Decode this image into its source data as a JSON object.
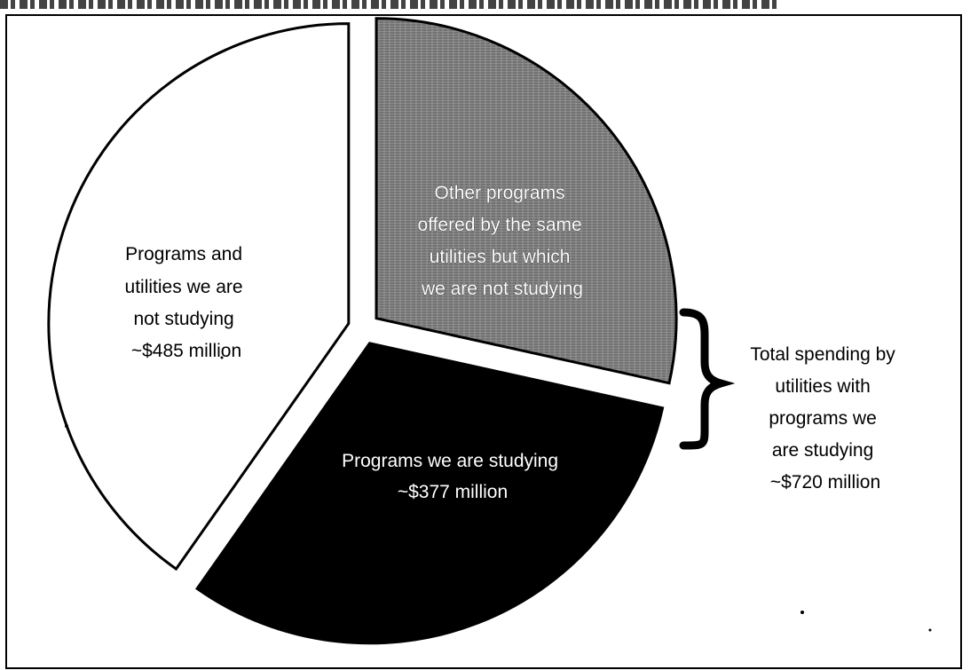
{
  "chart_data": {
    "type": "pie",
    "slices": [
      {
        "label_lines": [
          "Other programs",
          "offered by the same",
          "utilities but which",
          "we are not studying"
        ],
        "value": 343,
        "color": "#7a7a7a",
        "fill_style": "hatched"
      },
      {
        "label_lines": [
          "Programs we are studying",
          "~$377 million"
        ],
        "value": 377,
        "color": "#000000",
        "fill_style": "solid"
      },
      {
        "label_lines": [
          "Programs and",
          "utilities we are",
          "not studying",
          "~$485 million"
        ],
        "value": 485,
        "color": "#ffffff",
        "fill_style": "outline"
      }
    ],
    "annotation": {
      "label_lines": [
        "Total spending by",
        "utilities with",
        "programs we",
        "are studying",
        "~$720 million"
      ],
      "bracket": "right-brace"
    }
  }
}
